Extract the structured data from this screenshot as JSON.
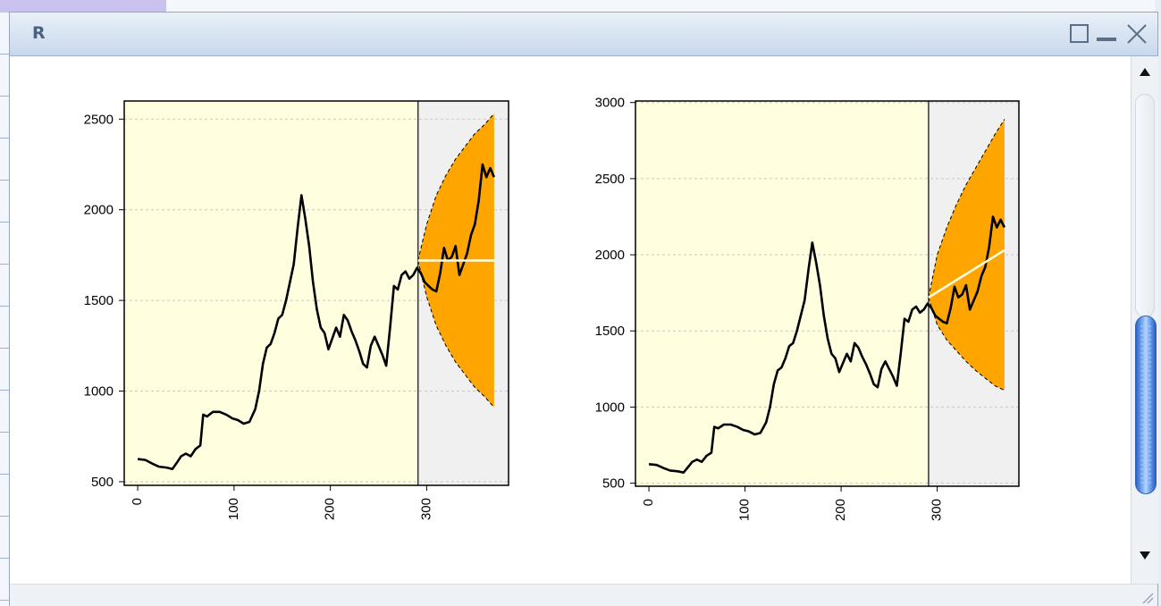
{
  "window": {
    "title": "R",
    "buttons": [
      {
        "name": "maximize",
        "icon": "maximize-icon"
      },
      {
        "name": "minimize",
        "icon": "minimize-icon"
      },
      {
        "name": "close",
        "icon": "close-icon"
      }
    ]
  },
  "colors": {
    "panel_train": "#ffffe0",
    "panel_forecast": "#f0f0f0",
    "forecast_fill": "#ffa500",
    "forecast_line": "#ffffe0",
    "series": "#000000"
  },
  "chart_data": [
    {
      "type": "line",
      "title": "",
      "xlabel": "",
      "ylabel": "",
      "xlim": [
        -14,
        385
      ],
      "ylim": [
        480,
        2600
      ],
      "xticks": [
        0,
        100,
        200,
        300
      ],
      "yticks": [
        500,
        1000,
        1500,
        2000,
        2500
      ],
      "split_x": 291,
      "forecast_end_x": 370,
      "grid": "horizontal-dashed",
      "series_points": [
        [
          0,
          625
        ],
        [
          8,
          620
        ],
        [
          15,
          600
        ],
        [
          22,
          583
        ],
        [
          30,
          578
        ],
        [
          36,
          570
        ],
        [
          40,
          600
        ],
        [
          45,
          640
        ],
        [
          50,
          655
        ],
        [
          55,
          640
        ],
        [
          60,
          680
        ],
        [
          65,
          700
        ],
        [
          68,
          870
        ],
        [
          72,
          860
        ],
        [
          78,
          885
        ],
        [
          85,
          885
        ],
        [
          92,
          870
        ],
        [
          98,
          850
        ],
        [
          104,
          840
        ],
        [
          110,
          820
        ],
        [
          116,
          830
        ],
        [
          122,
          900
        ],
        [
          126,
          1000
        ],
        [
          130,
          1150
        ],
        [
          134,
          1240
        ],
        [
          138,
          1260
        ],
        [
          142,
          1320
        ],
        [
          146,
          1400
        ],
        [
          150,
          1420
        ],
        [
          154,
          1500
        ],
        [
          158,
          1600
        ],
        [
          162,
          1700
        ],
        [
          166,
          1900
        ],
        [
          170,
          2080
        ],
        [
          174,
          1950
        ],
        [
          178,
          1800
        ],
        [
          182,
          1600
        ],
        [
          186,
          1450
        ],
        [
          190,
          1350
        ],
        [
          194,
          1320
        ],
        [
          198,
          1230
        ],
        [
          202,
          1290
        ],
        [
          206,
          1350
        ],
        [
          210,
          1300
        ],
        [
          214,
          1420
        ],
        [
          218,
          1390
        ],
        [
          222,
          1330
        ],
        [
          226,
          1280
        ],
        [
          230,
          1220
        ],
        [
          234,
          1150
        ],
        [
          238,
          1130
        ],
        [
          242,
          1250
        ],
        [
          246,
          1300
        ],
        [
          250,
          1250
        ],
        [
          254,
          1200
        ],
        [
          258,
          1140
        ],
        [
          262,
          1350
        ],
        [
          266,
          1580
        ],
        [
          270,
          1560
        ],
        [
          274,
          1640
        ],
        [
          278,
          1660
        ],
        [
          282,
          1620
        ],
        [
          286,
          1640
        ],
        [
          290,
          1680
        ],
        [
          294,
          1650
        ],
        [
          298,
          1600
        ],
        [
          302,
          1580
        ],
        [
          306,
          1560
        ],
        [
          310,
          1550
        ],
        [
          314,
          1650
        ],
        [
          318,
          1790
        ],
        [
          322,
          1720
        ],
        [
          326,
          1740
        ],
        [
          330,
          1800
        ],
        [
          334,
          1640
        ],
        [
          338,
          1700
        ],
        [
          342,
          1760
        ],
        [
          346,
          1860
        ],
        [
          350,
          1920
        ],
        [
          354,
          2050
        ],
        [
          358,
          2250
        ],
        [
          362,
          2180
        ],
        [
          366,
          2230
        ],
        [
          370,
          2180
        ]
      ],
      "forecast_mean": [
        [
          291,
          1720
        ],
        [
          370,
          1720
        ]
      ],
      "forecast_upper": [
        [
          291,
          1720
        ],
        [
          300,
          1920
        ],
        [
          310,
          2080
        ],
        [
          320,
          2190
        ],
        [
          330,
          2280
        ],
        [
          340,
          2350
        ],
        [
          350,
          2420
        ],
        [
          360,
          2470
        ],
        [
          370,
          2530
        ]
      ],
      "forecast_lower": [
        [
          291,
          1720
        ],
        [
          300,
          1520
        ],
        [
          310,
          1360
        ],
        [
          320,
          1250
        ],
        [
          330,
          1160
        ],
        [
          340,
          1090
        ],
        [
          350,
          1020
        ],
        [
          360,
          970
        ],
        [
          370,
          910
        ]
      ]
    },
    {
      "type": "line",
      "title": "",
      "xlabel": "",
      "ylabel": "",
      "xlim": [
        -14,
        385
      ],
      "ylim": [
        480,
        3010
      ],
      "xticks": [
        0,
        100,
        200,
        300
      ],
      "yticks": [
        500,
        1000,
        1500,
        2000,
        2500,
        3000
      ],
      "split_x": 291,
      "forecast_end_x": 370,
      "grid": "horizontal-dashed",
      "series_points": [
        [
          0,
          625
        ],
        [
          8,
          620
        ],
        [
          15,
          600
        ],
        [
          22,
          583
        ],
        [
          30,
          578
        ],
        [
          36,
          570
        ],
        [
          40,
          600
        ],
        [
          45,
          640
        ],
        [
          50,
          655
        ],
        [
          55,
          640
        ],
        [
          60,
          680
        ],
        [
          65,
          700
        ],
        [
          68,
          870
        ],
        [
          72,
          860
        ],
        [
          78,
          885
        ],
        [
          85,
          885
        ],
        [
          92,
          870
        ],
        [
          98,
          850
        ],
        [
          104,
          840
        ],
        [
          110,
          820
        ],
        [
          116,
          830
        ],
        [
          122,
          900
        ],
        [
          126,
          1000
        ],
        [
          130,
          1150
        ],
        [
          134,
          1240
        ],
        [
          138,
          1260
        ],
        [
          142,
          1320
        ],
        [
          146,
          1400
        ],
        [
          150,
          1420
        ],
        [
          154,
          1500
        ],
        [
          158,
          1600
        ],
        [
          162,
          1700
        ],
        [
          166,
          1900
        ],
        [
          170,
          2080
        ],
        [
          174,
          1950
        ],
        [
          178,
          1800
        ],
        [
          182,
          1600
        ],
        [
          186,
          1450
        ],
        [
          190,
          1350
        ],
        [
          194,
          1320
        ],
        [
          198,
          1230
        ],
        [
          202,
          1290
        ],
        [
          206,
          1350
        ],
        [
          210,
          1300
        ],
        [
          214,
          1420
        ],
        [
          218,
          1390
        ],
        [
          222,
          1330
        ],
        [
          226,
          1280
        ],
        [
          230,
          1220
        ],
        [
          234,
          1150
        ],
        [
          238,
          1130
        ],
        [
          242,
          1250
        ],
        [
          246,
          1300
        ],
        [
          250,
          1250
        ],
        [
          254,
          1200
        ],
        [
          258,
          1140
        ],
        [
          262,
          1350
        ],
        [
          266,
          1580
        ],
        [
          270,
          1560
        ],
        [
          274,
          1640
        ],
        [
          278,
          1660
        ],
        [
          282,
          1620
        ],
        [
          286,
          1640
        ],
        [
          290,
          1680
        ],
        [
          294,
          1650
        ],
        [
          298,
          1600
        ],
        [
          302,
          1580
        ],
        [
          306,
          1560
        ],
        [
          310,
          1550
        ],
        [
          314,
          1650
        ],
        [
          318,
          1790
        ],
        [
          322,
          1720
        ],
        [
          326,
          1740
        ],
        [
          330,
          1800
        ],
        [
          334,
          1640
        ],
        [
          338,
          1700
        ],
        [
          342,
          1760
        ],
        [
          346,
          1860
        ],
        [
          350,
          1920
        ],
        [
          354,
          2050
        ],
        [
          358,
          2250
        ],
        [
          362,
          2180
        ],
        [
          366,
          2230
        ],
        [
          370,
          2180
        ]
      ],
      "forecast_mean": [
        [
          291,
          1720
        ],
        [
          370,
          2030
        ]
      ],
      "forecast_upper": [
        [
          291,
          1720
        ],
        [
          300,
          2000
        ],
        [
          310,
          2180
        ],
        [
          320,
          2330
        ],
        [
          330,
          2460
        ],
        [
          340,
          2570
        ],
        [
          350,
          2680
        ],
        [
          360,
          2790
        ],
        [
          370,
          2890
        ]
      ],
      "forecast_lower": [
        [
          291,
          1720
        ],
        [
          300,
          1540
        ],
        [
          310,
          1440
        ],
        [
          320,
          1370
        ],
        [
          330,
          1300
        ],
        [
          340,
          1240
        ],
        [
          350,
          1190
        ],
        [
          360,
          1140
        ],
        [
          370,
          1110
        ]
      ]
    }
  ]
}
